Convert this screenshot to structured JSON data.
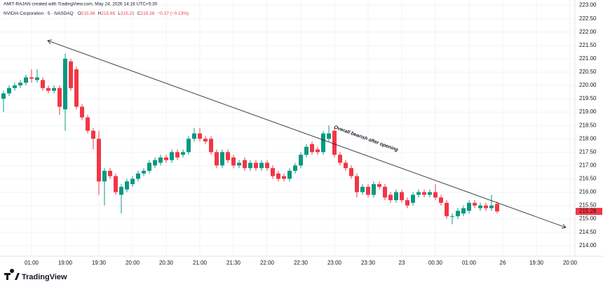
{
  "chart_data": {
    "type": "candlestick",
    "attribution": "AMIT-RAJAN created with TradingView.com, May 24, 2026 14:16 UTC+5:30",
    "title": "NVIDIA Corporation · 5 · NASDAQ",
    "legend": {
      "labels": [
        "O",
        "H",
        "L",
        "C"
      ],
      "values": [
        215.56,
        215.65,
        215.21,
        215.28
      ],
      "change": "−0.27 (−0.13%)"
    },
    "annotation": "Overall bearish after opening",
    "brand": "TradingView",
    "up_color": "#089981",
    "down_color": "#f23645",
    "grid": true,
    "categories": [
      null,
      null,
      null,
      null,
      null,
      "01:00",
      null,
      null,
      null,
      null,
      null,
      "19:00",
      null,
      null,
      null,
      null,
      null,
      "19:30",
      null,
      null,
      null,
      null,
      null,
      "20:00",
      null,
      null,
      null,
      null,
      null,
      "20:30",
      null,
      null,
      null,
      null,
      null,
      "21:00",
      null,
      null,
      null,
      null,
      null,
      "21:30",
      null,
      null,
      null,
      null,
      null,
      "22:00",
      null,
      null,
      null,
      null,
      null,
      "22:30",
      null,
      null,
      null,
      null,
      null,
      "23:00",
      null,
      null,
      null,
      null,
      null,
      "23:30",
      null,
      null,
      null,
      null,
      null,
      "23",
      null,
      null,
      null,
      null,
      null,
      "00:30",
      null,
      null,
      null,
      null,
      null,
      "01:00",
      null,
      null,
      null,
      null,
      null,
      "26",
      null,
      null,
      null,
      null,
      null,
      "19:30",
      null,
      null,
      null,
      null,
      null,
      "20:00"
    ],
    "open": [
      219.5,
      219.7,
      219.9,
      220.0,
      220.1,
      220.3,
      220.2,
      220.2,
      219.9,
      219.8,
      219.9,
      219.1,
      220.9,
      220.6,
      219.2,
      218.8,
      218.3,
      218.0,
      216.4,
      216.8,
      216.6,
      215.9,
      216.1,
      216.3,
      216.5,
      216.7,
      216.8,
      217.0,
      217.1,
      217.3,
      217.2,
      217.5,
      217.4,
      217.5,
      218.0,
      218.2,
      218.0,
      218.0,
      217.5,
      217.0,
      217.5,
      217.3,
      217.0,
      217.2,
      216.9,
      217.1,
      216.9,
      217.1,
      216.9,
      216.7,
      216.6,
      216.5,
      216.8,
      217.0,
      217.4,
      217.8,
      217.6,
      217.5,
      218.0,
      218.3,
      217.4,
      217.1,
      216.9,
      216.6,
      216.0,
      216.2,
      215.9,
      216.3,
      216.2,
      215.9,
      215.7,
      216.0,
      215.7,
      215.6,
      215.9,
      216.0,
      215.9,
      216.0,
      215.8,
      215.6,
      215.1,
      215.1,
      215.2,
      215.3,
      215.6,
      215.4,
      215.5,
      215.4,
      215.56,
      null,
      null,
      null,
      null,
      null,
      null,
      null,
      null,
      null,
      null,
      null,
      null,
      null
    ],
    "high": [
      219.8,
      220.0,
      220.1,
      220.2,
      220.4,
      220.6,
      220.6,
      220.3,
      220.0,
      220.0,
      220.0,
      221.2,
      221.0,
      220.7,
      219.3,
      218.9,
      218.4,
      218.3,
      216.9,
      216.9,
      216.7,
      216.3,
      216.5,
      216.6,
      216.8,
      216.9,
      217.2,
      217.3,
      217.4,
      217.4,
      217.6,
      217.6,
      217.6,
      218.1,
      218.4,
      218.4,
      218.1,
      218.1,
      217.6,
      217.6,
      217.6,
      217.4,
      217.2,
      217.3,
      217.2,
      217.2,
      217.2,
      217.2,
      217.0,
      216.8,
      216.7,
      216.9,
      217.1,
      217.5,
      217.8,
      217.9,
      217.7,
      218.3,
      218.5,
      218.4,
      217.5,
      217.2,
      217.0,
      216.7,
      216.3,
      216.3,
      216.4,
      216.4,
      216.3,
      216.0,
      216.1,
      216.1,
      215.8,
      216.0,
      216.1,
      216.1,
      216.1,
      216.3,
      215.9,
      215.7,
      215.2,
      215.4,
      215.5,
      215.7,
      215.7,
      215.6,
      215.6,
      215.9,
      215.65,
      null,
      null,
      null,
      null,
      null,
      null,
      null,
      null,
      null,
      null,
      null,
      null,
      null
    ],
    "low": [
      219.0,
      219.6,
      219.8,
      219.9,
      220.0,
      220.1,
      220.1,
      219.8,
      219.7,
      219.7,
      218.9,
      218.3,
      219.8,
      219.1,
      218.7,
      218.2,
      217.6,
      215.9,
      215.5,
      216.5,
      215.9,
      215.2,
      216.0,
      216.2,
      216.4,
      216.6,
      216.7,
      216.9,
      217.0,
      217.1,
      217.1,
      217.2,
      217.3,
      217.4,
      217.9,
      217.9,
      217.8,
      217.4,
      216.9,
      216.9,
      217.1,
      216.9,
      216.9,
      216.8,
      216.8,
      216.8,
      216.8,
      216.8,
      216.5,
      216.4,
      216.4,
      216.4,
      216.7,
      216.9,
      217.3,
      217.4,
      217.4,
      217.4,
      217.9,
      217.3,
      217.0,
      216.8,
      216.5,
      215.8,
      215.9,
      215.8,
      215.8,
      216.1,
      215.7,
      215.6,
      215.6,
      215.6,
      215.4,
      215.5,
      215.8,
      215.8,
      215.8,
      215.7,
      215.5,
      215.0,
      214.8,
      215.0,
      215.1,
      215.2,
      215.4,
      215.3,
      215.3,
      215.3,
      215.21,
      null,
      null,
      null,
      null,
      null,
      null,
      null,
      null,
      null,
      null,
      null,
      null,
      null
    ],
    "close": [
      219.7,
      219.9,
      220.0,
      220.1,
      220.3,
      220.25,
      220.3,
      219.9,
      219.8,
      219.9,
      219.2,
      221.0,
      219.9,
      219.2,
      218.8,
      218.3,
      218.0,
      216.4,
      216.8,
      216.6,
      216.0,
      216.2,
      216.4,
      216.5,
      216.7,
      216.8,
      217.1,
      217.2,
      217.3,
      217.2,
      217.5,
      217.3,
      217.5,
      218.0,
      218.2,
      218.0,
      217.9,
      217.5,
      217.0,
      217.5,
      217.2,
      217.0,
      217.1,
      216.9,
      217.1,
      216.9,
      217.1,
      216.9,
      216.6,
      216.5,
      216.5,
      216.8,
      217.0,
      217.4,
      217.7,
      217.5,
      217.5,
      218.2,
      218.2,
      217.4,
      217.1,
      216.9,
      216.6,
      216.0,
      216.2,
      215.9,
      216.3,
      216.2,
      215.8,
      215.7,
      216.0,
      215.7,
      215.5,
      215.9,
      216.0,
      215.9,
      216.0,
      215.8,
      215.6,
      215.1,
      215.1,
      215.3,
      215.4,
      215.6,
      215.5,
      215.5,
      215.4,
      215.5,
      215.28,
      null,
      null,
      null,
      null,
      null,
      null,
      null,
      null,
      null,
      null,
      null,
      null,
      null
    ],
    "ylim": [
      213.6,
      223.2
    ],
    "yticks": [
      {
        "value": 214,
        "label": "214.00"
      },
      {
        "value": 214.5,
        "label": "214.50"
      },
      {
        "value": 215,
        "label": "215.00"
      },
      {
        "value": 215.5,
        "label": "215.50"
      },
      {
        "value": 216,
        "label": "216.00"
      },
      {
        "value": 216.5,
        "label": "216.50"
      },
      {
        "value": 217,
        "label": "217.00"
      },
      {
        "value": 217.5,
        "label": "217.50"
      },
      {
        "value": 218,
        "label": "218.00"
      },
      {
        "value": 218.5,
        "label": "218.50"
      },
      {
        "value": 219,
        "label": "219.00"
      },
      {
        "value": 219.5,
        "label": "219.50"
      },
      {
        "value": 220,
        "label": "220.00"
      },
      {
        "value": 220.5,
        "label": "220.50"
      },
      {
        "value": 221,
        "label": "221.00"
      },
      {
        "value": 221.5,
        "label": "221.50"
      },
      {
        "value": 222,
        "label": "222.00"
      },
      {
        "value": 222.5,
        "label": "222.50"
      },
      {
        "value": 223,
        "label": "223.00"
      }
    ]
  }
}
